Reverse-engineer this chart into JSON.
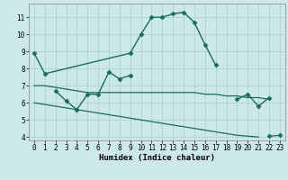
{
  "title": "",
  "xlabel": "Humidex (Indice chaleur)",
  "ylabel": "",
  "bg_color": "#cce8e8",
  "grid_color": "#aad4d4",
  "line_color": "#1a6b5a",
  "xlim": [
    -0.5,
    23.5
  ],
  "ylim": [
    3.8,
    11.8
  ],
  "yticks": [
    4,
    5,
    6,
    7,
    8,
    9,
    10,
    11
  ],
  "xticks": [
    0,
    1,
    2,
    3,
    4,
    5,
    6,
    7,
    8,
    9,
    10,
    11,
    12,
    13,
    14,
    15,
    16,
    17,
    18,
    19,
    20,
    21,
    22,
    23
  ],
  "series1_x": [
    0,
    1,
    9,
    10,
    11,
    12,
    13,
    14,
    15,
    16,
    17
  ],
  "series1_y": [
    8.9,
    7.7,
    8.9,
    10.0,
    11.0,
    11.0,
    11.2,
    11.3,
    10.7,
    9.4,
    8.2
  ],
  "series2_x": [
    2,
    3,
    4,
    5,
    6,
    7,
    8,
    9,
    19,
    20,
    21,
    22
  ],
  "series2_y": [
    6.7,
    6.1,
    5.6,
    6.5,
    6.5,
    7.8,
    7.4,
    7.6,
    6.2,
    6.5,
    5.8,
    6.3
  ],
  "series2_breaks": [
    9,
    19
  ],
  "series3_x": [
    0,
    1,
    2,
    3,
    4,
    5,
    6,
    7,
    8,
    9,
    10,
    11,
    12,
    13,
    14,
    15,
    16,
    17,
    18,
    19,
    20,
    21,
    22
  ],
  "series3_y": [
    7.0,
    7.0,
    6.9,
    6.8,
    6.7,
    6.6,
    6.6,
    6.6,
    6.6,
    6.6,
    6.6,
    6.6,
    6.6,
    6.6,
    6.6,
    6.6,
    6.5,
    6.5,
    6.4,
    6.4,
    6.3,
    6.3,
    6.2
  ],
  "series4_x": [
    0,
    1,
    2,
    3,
    4,
    5,
    6,
    7,
    8,
    9,
    10,
    11,
    12,
    13,
    14,
    15,
    16,
    17,
    18,
    19,
    20,
    21
  ],
  "series4_y": [
    6.0,
    5.9,
    5.8,
    5.7,
    5.6,
    5.5,
    5.4,
    5.3,
    5.2,
    5.1,
    5.0,
    4.9,
    4.8,
    4.7,
    4.6,
    4.5,
    4.4,
    4.3,
    4.2,
    4.1,
    4.05,
    4.0
  ],
  "series5_x": [
    22,
    23
  ],
  "series5_y": [
    4.05,
    4.1
  ]
}
